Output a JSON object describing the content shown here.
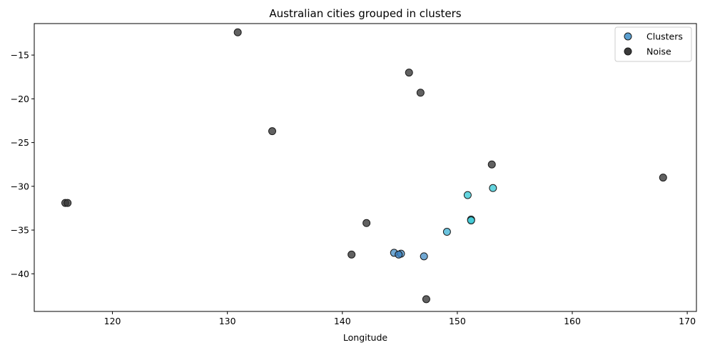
{
  "chart_data": {
    "type": "scatter",
    "title": "Australian cities grouped in clusters",
    "xlabel": "Longitude",
    "ylabel": "",
    "xlim": [
      113.2,
      170.8
    ],
    "ylim": [
      -44.3,
      -11.4
    ],
    "xticks": [
      120,
      130,
      140,
      150,
      160,
      170
    ],
    "yticks": [
      -15,
      -20,
      -25,
      -30,
      -35,
      -40
    ],
    "grid": false,
    "legend_position": "top-right",
    "colors": {
      "noise": "#3a3a3a",
      "cluster_a": "#4d92c8",
      "cluster_b": "#3dc9d6",
      "edge": "#1a1a1a"
    },
    "series": [
      {
        "name": "Clusters",
        "legend_color": "#5a9fd0",
        "points": [
          {
            "x": 144.5,
            "y": -37.6,
            "color": "#4d92c8"
          },
          {
            "x": 145.1,
            "y": -37.7,
            "color": "#4d92c8"
          },
          {
            "x": 144.9,
            "y": -37.8,
            "color": "#3a7fc0"
          },
          {
            "x": 147.1,
            "y": -38.0,
            "color": "#4d92c8"
          },
          {
            "x": 149.1,
            "y": -35.2,
            "color": "#45b4d6"
          },
          {
            "x": 150.9,
            "y": -31.0,
            "color": "#3dc9d6"
          },
          {
            "x": 153.1,
            "y": -30.2,
            "color": "#3dc9d6"
          },
          {
            "x": 151.2,
            "y": -33.8,
            "color": "#3dc9d6"
          },
          {
            "x": 151.2,
            "y": -33.9,
            "color": "#3dc9d6"
          }
        ]
      },
      {
        "name": "Noise",
        "legend_color": "#3a3a3a",
        "points": [
          {
            "x": 130.9,
            "y": -12.4
          },
          {
            "x": 145.8,
            "y": -17.0
          },
          {
            "x": 146.8,
            "y": -19.3
          },
          {
            "x": 133.9,
            "y": -23.7
          },
          {
            "x": 153.0,
            "y": -27.5
          },
          {
            "x": 167.9,
            "y": -29.0
          },
          {
            "x": 115.9,
            "y": -31.9
          },
          {
            "x": 116.1,
            "y": -31.9
          },
          {
            "x": 142.1,
            "y": -34.2
          },
          {
            "x": 140.8,
            "y": -37.8
          },
          {
            "x": 147.3,
            "y": -42.9
          }
        ]
      }
    ]
  }
}
